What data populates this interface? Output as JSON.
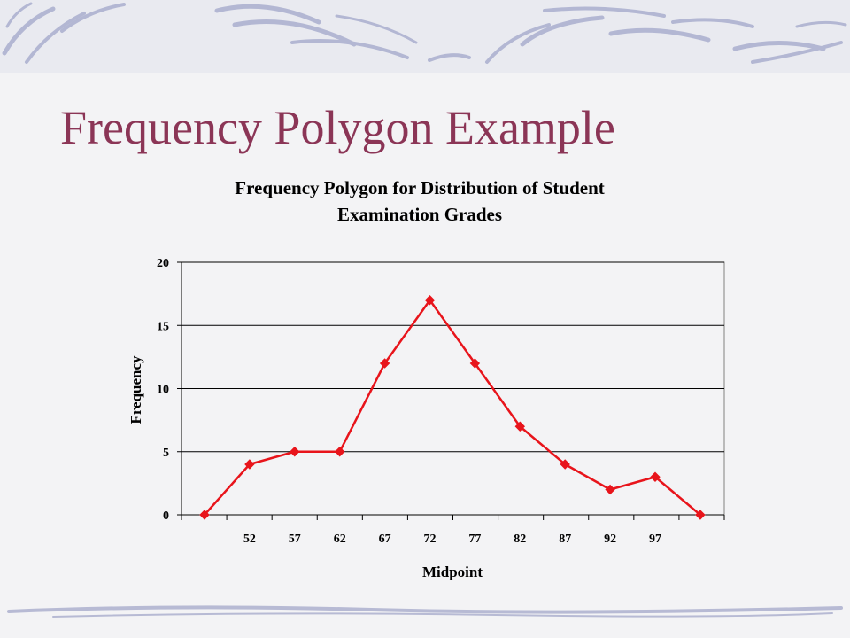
{
  "slide": {
    "title": "Frequency Polygon Example",
    "colors": {
      "title": "#8b3556",
      "series": "#e8141b",
      "background": "#f3f3f5",
      "decoration": "#b8bbd6"
    }
  },
  "chart_data": {
    "type": "line",
    "title_lines": [
      "Frequency Polygon for Distribution of Student",
      "Examination Grades"
    ],
    "xlabel": "Midpoint",
    "ylabel": "Frequency",
    "x_tick_labels": [
      "",
      "52",
      "57",
      "62",
      "67",
      "72",
      "77",
      "82",
      "87",
      "92",
      "97",
      ""
    ],
    "series": [
      {
        "values": [
          0,
          4,
          5,
          5,
          12,
          17,
          12,
          7,
          4,
          2,
          3,
          0
        ],
        "color": "#e8141b",
        "marker": "diamond"
      }
    ],
    "ylim": [
      0,
      20
    ],
    "yticks": [
      0,
      5,
      10,
      15,
      20
    ],
    "grid": true,
    "legend": "none"
  }
}
